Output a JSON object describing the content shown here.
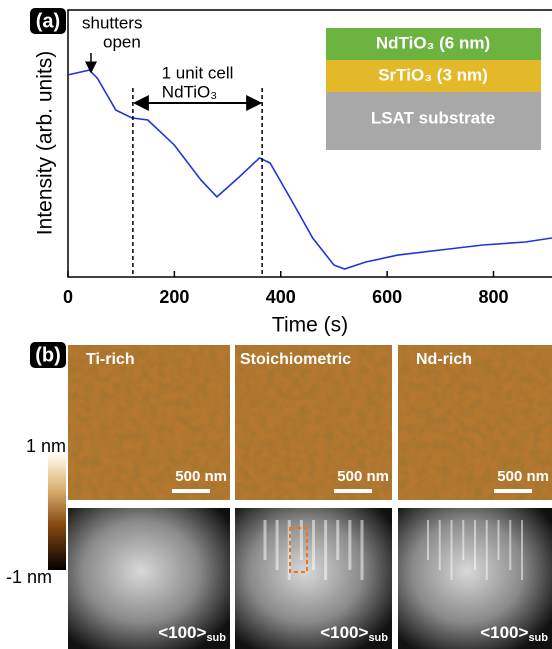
{
  "labels": {
    "a": "(a)",
    "b": "(b)"
  },
  "chart_data": {
    "type": "line",
    "x_label": "Time (s)",
    "y_label": "Intensity (arb. units)",
    "x": [
      0,
      40,
      55,
      90,
      120,
      150,
      200,
      250,
      280,
      320,
      360,
      380,
      420,
      460,
      500,
      520,
      560,
      620,
      700,
      780,
      860,
      910
    ],
    "values": [
      0.757,
      0.775,
      0.745,
      0.625,
      0.596,
      0.588,
      0.494,
      0.363,
      0.3,
      0.371,
      0.446,
      0.427,
      0.288,
      0.146,
      0.045,
      0.03,
      0.056,
      0.082,
      0.101,
      0.12,
      0.131,
      0.146
    ],
    "color": "#2233dd",
    "xlim": [
      0,
      910
    ],
    "ylim": [
      0,
      1
    ],
    "xticks": [
      0,
      200,
      400,
      600,
      800
    ],
    "vlines": [
      122,
      365
    ],
    "annotations": [
      "shutters",
      "open",
      "1 unit cell",
      "NdTiO₃"
    ],
    "layers": [
      {
        "name": "NdTiO₃ (6 nm)",
        "color": "#6db33f"
      },
      {
        "name": "SrTiO₃ (3 nm)",
        "color": "#e3b92a"
      },
      {
        "name": "LSAT substrate",
        "color": "#a8a8a8"
      }
    ]
  },
  "panel_b": {
    "columns": [
      "Ti-rich",
      "Stoichiometric",
      "Nd-rich"
    ],
    "scale_bar": "500 nm",
    "direction": "<100>",
    "direction_sub": "sub",
    "colorbar": {
      "max": "1 nm",
      "min": "-1 nm"
    }
  }
}
